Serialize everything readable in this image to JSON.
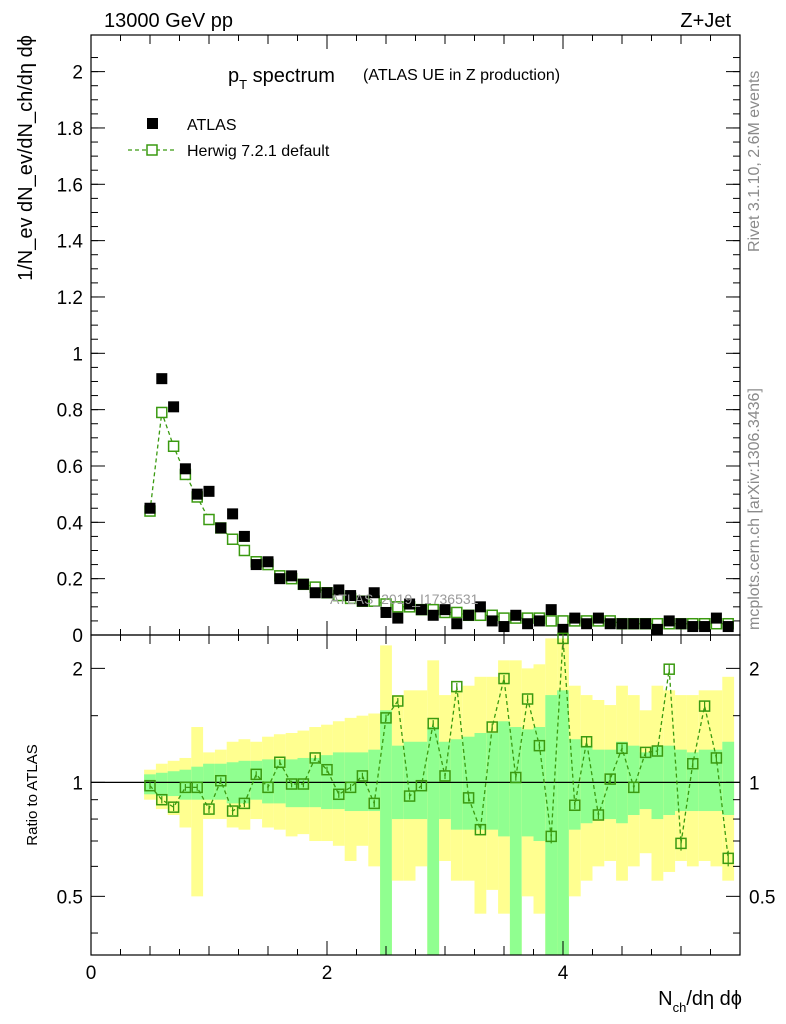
{
  "header": {
    "energy_label": "13000 GeV pp",
    "process_label": "Z+Jet"
  },
  "side_labels": {
    "rivet": "Rivet 3.1.10,  2.6M events",
    "mcplots": "mcplots.cern.ch [arXiv:1306.3436]"
  },
  "watermark": "ATLAS_2019_I1736531",
  "colors": {
    "data": "#000000",
    "mc": "#3a9a10",
    "band_stat": "#90ff90",
    "band_total": "#ffff90"
  },
  "chart_data": [
    {
      "type": "scatter",
      "title_main": "p",
      "title_sub": "T",
      "title_rest": " spectrum",
      "title_suffix": "(ATLAS UE in Z production)",
      "ylabel": "1/N_ev dN_ev/dN_ch/dη dϕ",
      "xlim": [
        0,
        5.5
      ],
      "ylim": [
        0,
        2.13
      ],
      "yticks": [
        0,
        0.2,
        0.4,
        0.6,
        0.8,
        1,
        1.2,
        1.4,
        1.6,
        1.8,
        2
      ],
      "ytick_labels": [
        "0",
        "0.2",
        "0.4",
        "0.6",
        "0.8",
        "1",
        "1.2",
        "1.4",
        "1.6",
        "1.8",
        "2"
      ],
      "x": [
        0.5,
        0.6,
        0.7,
        0.8,
        0.9,
        1.0,
        1.1,
        1.2,
        1.3,
        1.4,
        1.5,
        1.6,
        1.7,
        1.8,
        1.9,
        2.0,
        2.1,
        2.2,
        2.3,
        2.4,
        2.5,
        2.6,
        2.7,
        2.8,
        2.9,
        3.0,
        3.1,
        3.2,
        3.3,
        3.4,
        3.5,
        3.6,
        3.7,
        3.8,
        3.9,
        4.0,
        4.1,
        4.2,
        4.3,
        4.4,
        4.5,
        4.6,
        4.7,
        4.8,
        4.9,
        5.0,
        5.1,
        5.2,
        5.3,
        5.4
      ],
      "series": [
        {
          "name": "ATLAS",
          "marker": "filled-square",
          "values": [
            0.45,
            0.91,
            0.81,
            0.59,
            0.5,
            0.51,
            0.38,
            0.43,
            0.35,
            0.25,
            0.26,
            0.2,
            0.21,
            0.18,
            0.15,
            0.15,
            0.16,
            0.14,
            0.12,
            0.15,
            0.08,
            0.06,
            0.11,
            0.09,
            0.07,
            0.09,
            0.04,
            0.07,
            0.1,
            0.05,
            0.03,
            0.07,
            0.04,
            0.05,
            0.09,
            0.02,
            0.06,
            0.04,
            0.06,
            0.04,
            0.04,
            0.04,
            0.04,
            0.02,
            0.05,
            0.04,
            0.03,
            0.03,
            0.06,
            0.03
          ]
        },
        {
          "name": "Herwig 7.2.1 default",
          "marker": "open-square-dashed",
          "values": [
            0.44,
            0.79,
            0.67,
            0.57,
            0.49,
            0.41,
            0.38,
            0.34,
            0.3,
            0.26,
            0.25,
            0.21,
            0.2,
            0.18,
            0.17,
            0.15,
            0.14,
            0.13,
            0.12,
            0.12,
            0.11,
            0.1,
            0.1,
            0.09,
            0.09,
            0.08,
            0.08,
            0.07,
            0.07,
            0.07,
            0.06,
            0.06,
            0.06,
            0.06,
            0.05,
            0.05,
            0.05,
            0.05,
            0.05,
            0.05,
            0.04,
            0.04,
            0.04,
            0.04,
            0.04,
            0.04,
            0.04,
            0.04,
            0.04,
            0.04
          ]
        }
      ]
    },
    {
      "type": "scatter",
      "ylabel": "Ratio to ATLAS",
      "xlabel_main": "N",
      "xlabel_sub": "ch",
      "xlabel_rest": "/dη dϕ",
      "xlim": [
        0,
        5.5
      ],
      "ylim": [
        0.35,
        2.45
      ],
      "log_y": true,
      "xticks": [
        0,
        2,
        4
      ],
      "xtick_labels": [
        "0",
        "2",
        "4"
      ],
      "yticks": [
        0.5,
        1,
        2
      ],
      "ytick_labels": [
        "0.5",
        "1",
        "2"
      ],
      "x": [
        0.5,
        0.6,
        0.7,
        0.8,
        0.9,
        1.0,
        1.1,
        1.2,
        1.3,
        1.4,
        1.5,
        1.6,
        1.7,
        1.8,
        1.9,
        2.0,
        2.1,
        2.2,
        2.3,
        2.4,
        2.5,
        2.6,
        2.7,
        2.8,
        2.9,
        3.0,
        3.1,
        3.2,
        3.3,
        3.4,
        3.5,
        3.6,
        3.7,
        3.8,
        3.9,
        4.0,
        4.1,
        4.2,
        4.3,
        4.4,
        4.5,
        4.6,
        4.7,
        4.8,
        4.9,
        5.0,
        5.1,
        5.2,
        5.3,
        5.4
      ],
      "stat_band_low": [
        0.93,
        0.92,
        0.92,
        0.9,
        0.9,
        0.9,
        0.9,
        0.88,
        0.88,
        0.9,
        0.88,
        0.88,
        0.86,
        0.86,
        0.86,
        0.85,
        0.85,
        0.84,
        0.84,
        0.84,
        0.35,
        0.8,
        0.8,
        0.8,
        0.35,
        0.8,
        0.75,
        0.75,
        0.75,
        0.75,
        0.72,
        0.35,
        0.72,
        0.7,
        0.35,
        0.35,
        0.75,
        0.78,
        0.8,
        0.8,
        0.78,
        0.82,
        0.85,
        0.8,
        0.82,
        0.84,
        0.84,
        0.84,
        0.84,
        0.82
      ],
      "stat_band_high": [
        1.05,
        1.06,
        1.07,
        1.08,
        1.1,
        1.12,
        1.12,
        1.13,
        1.14,
        1.14,
        1.15,
        1.15,
        1.15,
        1.16,
        1.16,
        1.18,
        1.2,
        1.2,
        1.2,
        1.22,
        1.55,
        1.25,
        1.28,
        1.28,
        1.4,
        1.28,
        1.3,
        1.32,
        1.35,
        1.35,
        1.45,
        1.4,
        1.38,
        1.4,
        1.7,
        1.75,
        1.3,
        1.25,
        1.22,
        1.22,
        1.28,
        1.25,
        1.2,
        1.25,
        1.25,
        1.22,
        1.2,
        1.22,
        1.22,
        1.28
      ],
      "total_band_low": [
        0.9,
        0.85,
        0.82,
        0.76,
        0.5,
        0.8,
        0.8,
        0.76,
        0.75,
        0.8,
        0.76,
        0.75,
        0.72,
        0.73,
        0.7,
        0.7,
        0.68,
        0.62,
        0.68,
        0.6,
        0.35,
        0.55,
        0.55,
        0.6,
        0.35,
        0.62,
        0.55,
        0.55,
        0.45,
        0.52,
        0.45,
        0.35,
        0.5,
        0.45,
        0.35,
        0.35,
        0.5,
        0.55,
        0.6,
        0.62,
        0.55,
        0.6,
        0.65,
        0.55,
        0.58,
        0.62,
        0.6,
        0.62,
        0.6,
        0.55
      ],
      "total_band_high": [
        1.08,
        1.12,
        1.14,
        1.16,
        1.4,
        1.2,
        1.22,
        1.28,
        1.3,
        1.28,
        1.32,
        1.34,
        1.35,
        1.37,
        1.4,
        1.42,
        1.45,
        1.48,
        1.5,
        1.52,
        2.3,
        1.7,
        1.75,
        1.75,
        2.1,
        1.7,
        1.75,
        1.8,
        1.9,
        1.9,
        2.1,
        2.1,
        2.0,
        2.05,
        2.4,
        2.4,
        1.8,
        1.7,
        1.65,
        1.6,
        1.8,
        1.7,
        1.55,
        1.8,
        1.75,
        1.7,
        1.7,
        1.75,
        1.75,
        1.9
      ],
      "mc_ratio": [
        0.98,
        0.9,
        0.86,
        0.97,
        0.97,
        0.85,
        1.01,
        0.84,
        0.88,
        1.05,
        0.97,
        1.13,
        0.99,
        0.99,
        1.16,
        1.08,
        0.93,
        0.97,
        1.04,
        0.88,
        1.48,
        1.64,
        0.92,
        0.98,
        1.43,
        1.04,
        1.79,
        0.91,
        0.75,
        1.4,
        1.88,
        1.03,
        1.66,
        1.25,
        0.72,
        2.4,
        0.87,
        1.28,
        0.82,
        1.02,
        1.23,
        0.97,
        1.2,
        1.21,
        1.99,
        0.69,
        1.12,
        1.59,
        1.16,
        0.63
      ],
      "mc_err": [
        0.02,
        0.02,
        0.02,
        0.02,
        0.02,
        0.02,
        0.02,
        0.02,
        0.02,
        0.02,
        0.02,
        0.02,
        0.02,
        0.02,
        0.02,
        0.02,
        0.02,
        0.02,
        0.02,
        0.02,
        0.03,
        0.03,
        0.02,
        0.02,
        0.03,
        0.02,
        0.04,
        0.02,
        0.02,
        0.03,
        0.04,
        0.02,
        0.04,
        0.03,
        0.03,
        0.06,
        0.02,
        0.04,
        0.02,
        0.03,
        0.03,
        0.03,
        0.03,
        0.03,
        0.06,
        0.03,
        0.03,
        0.05,
        0.04,
        0.03
      ]
    }
  ]
}
